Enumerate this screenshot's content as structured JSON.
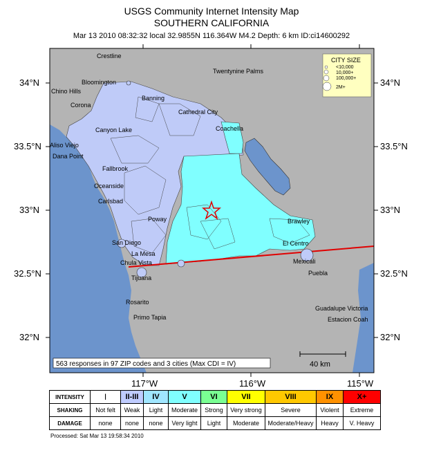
{
  "header": {
    "title": "USGS Community Internet Intensity Map",
    "region": "SOUTHERN CALIFORNIA",
    "event": "Mar 13 2010 08:32:32 local 32.9855N 116.364W M4.2 Depth: 6 km ID:ci14600292"
  },
  "map": {
    "lat_labels": [
      "34°N",
      "33.5°N",
      "33°N",
      "32.5°N",
      "32°N"
    ],
    "lon_labels": [
      "117°W",
      "116°W",
      "115°W"
    ],
    "cities": [
      "Crestline",
      "Twentynine Palms",
      "Bloomington",
      "Chino Hills",
      "Corona",
      "Banning",
      "Cathedral City",
      "Coachella",
      "Canyon Lake",
      "Aliso Viejo",
      "Dana Point",
      "Fallbrook",
      "Oceanside",
      "Carlsbad",
      "Poway",
      "San Diego",
      "La Mesa",
      "Chula Vista",
      "Tijuana",
      "Rosarito",
      "Primo Tapia",
      "Brawley",
      "El Centro",
      "Mexicali",
      "Puebla",
      "Guadalupe Victoria",
      "Estacion Coah"
    ],
    "summary": "563 responses in 97 ZIP codes and 3 cities (Max CDI = IV)",
    "scale_label": "40 km",
    "city_size_legend": {
      "title": "CITY SIZE",
      "sizes": [
        "<10,000",
        "10,000+",
        "100,000+",
        "2M+"
      ]
    },
    "epicenter_icon": "red-star-icon",
    "colors": {
      "ocean": "#6c94cc",
      "land": "#b4b4b4",
      "cdi_II_III": "#bfcbf8",
      "cdi_IV": "#80ffff",
      "fault": "#e00000",
      "lake": "#6c94cc"
    }
  },
  "legend": {
    "intensity_label": "INTENSITY",
    "shaking_label": "SHAKING",
    "damage_label": "DAMAGE",
    "columns": [
      {
        "intensity": "I",
        "shaking": "Not felt",
        "damage": "none",
        "color": "#ffffff"
      },
      {
        "intensity": "II-III",
        "shaking": "Weak",
        "damage": "none",
        "color": "#bfccff"
      },
      {
        "intensity": "IV",
        "shaking": "Light",
        "damage": "none",
        "color": "#a0e6ff"
      },
      {
        "intensity": "V",
        "shaking": "Moderate",
        "damage": "Very light",
        "color": "#80ffff"
      },
      {
        "intensity": "VI",
        "shaking": "Strong",
        "damage": "Light",
        "color": "#7aff93"
      },
      {
        "intensity": "VII",
        "shaking": "Very strong",
        "damage": "Moderate",
        "color": "#ffff00"
      },
      {
        "intensity": "VIII",
        "shaking": "Severe",
        "damage": "Moderate/Heavy",
        "color": "#ffc800"
      },
      {
        "intensity": "IX",
        "shaking": "Violent",
        "damage": "Heavy",
        "color": "#ff9100"
      },
      {
        "intensity": "X+",
        "shaking": "Extreme",
        "damage": "V. Heavy",
        "color": "#ff0000"
      }
    ]
  },
  "footer": {
    "processed": "Processed: Sat Mar 13 19:58:34 2010"
  }
}
